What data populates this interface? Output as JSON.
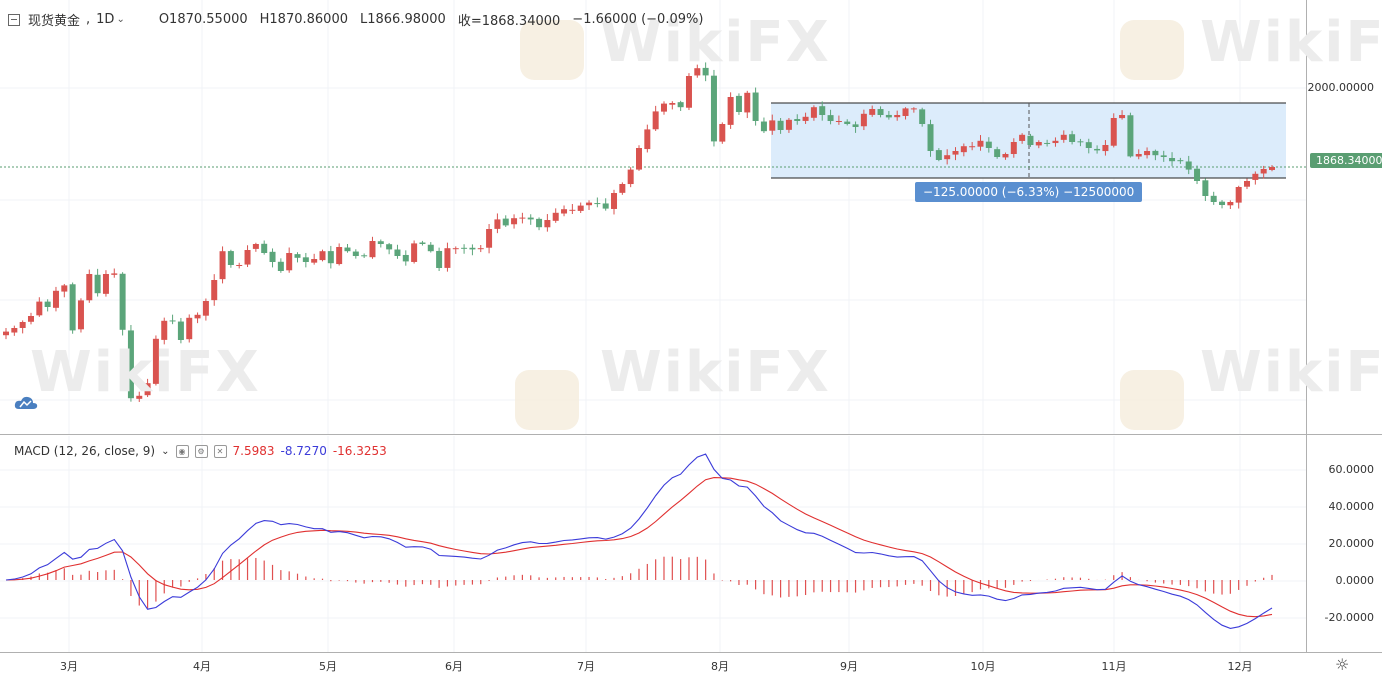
{
  "symbol": {
    "name": "现货黄金",
    "interval": "1D",
    "open": "O1870.55000",
    "high": "H1870.86000",
    "low": "L1866.98000",
    "close": "收=1868.34000",
    "change": "−1.66000 (−0.09%)"
  },
  "price_axis": {
    "tick_2000": "2000.00000",
    "current_price": "1868.34000"
  },
  "measure": {
    "label": "−125.00000 (−6.33%) −12500000"
  },
  "macd": {
    "title": "MACD (12, 26, close, 9)",
    "hist": "7.5983",
    "macd": "-8.7270",
    "signal": "-16.3253",
    "ticks": [
      "60.0000",
      "40.0000",
      "20.0000",
      "0.0000",
      "-20.0000"
    ]
  },
  "time_axis": [
    "3月",
    "4月",
    "5月",
    "6月",
    "7月",
    "8月",
    "9月",
    "10月",
    "11月",
    "12月"
  ],
  "watermark": "WikiFX",
  "colors": {
    "up": "#d9534f",
    "down": "#5ba57a",
    "macd_line": "#3b3bd9",
    "signal_line": "#e03030",
    "rect_fill": "#dcecfb"
  },
  "chart_data": {
    "type": "candlestick",
    "unit": "USD",
    "close": [
      1594,
      1600,
      1610,
      1620,
      1644,
      1635,
      1662,
      1671,
      1596,
      1646,
      1690,
      1658,
      1690,
      1691,
      1597,
      1483,
      1487,
      1508,
      1582,
      1612,
      1611,
      1580,
      1617,
      1622,
      1645,
      1680,
      1728,
      1705,
      1705,
      1730,
      1740,
      1725,
      1710,
      1695,
      1725,
      1717,
      1710,
      1715,
      1728,
      1708,
      1735,
      1728,
      1720,
      1720,
      1745,
      1740,
      1731,
      1720,
      1711,
      1741,
      1740,
      1728,
      1700,
      1733,
      1733,
      1733,
      1731,
      1733,
      1765,
      1781,
      1771,
      1783,
      1784,
      1781,
      1768,
      1780,
      1792,
      1798,
      1797,
      1804,
      1809,
      1808,
      1799,
      1825,
      1840,
      1864,
      1900,
      1931,
      1961,
      1974,
      1975,
      1968,
      2020,
      2033,
      2021,
      1911,
      1940,
      1985,
      1960,
      1992,
      1945,
      1928,
      1946,
      1930,
      1947,
      1945,
      1952,
      1968,
      1955,
      1945,
      1945,
      1940,
      1935,
      1957,
      1965,
      1955,
      1951,
      1955,
      1966,
      1966,
      1940,
      1895,
      1880,
      1888,
      1895,
      1903,
      1903,
      1912,
      1900,
      1885,
      1890,
      1910,
      1922,
      1905,
      1910,
      1907,
      1912,
      1922,
      1910,
      1910,
      1900,
      1896,
      1905,
      1950,
      1955,
      1886,
      1890,
      1895,
      1888,
      1885,
      1878,
      1878,
      1864,
      1845,
      1820,
      1810,
      1805,
      1810,
      1835,
      1845,
      1857,
      1865,
      1868.34
    ]
  }
}
